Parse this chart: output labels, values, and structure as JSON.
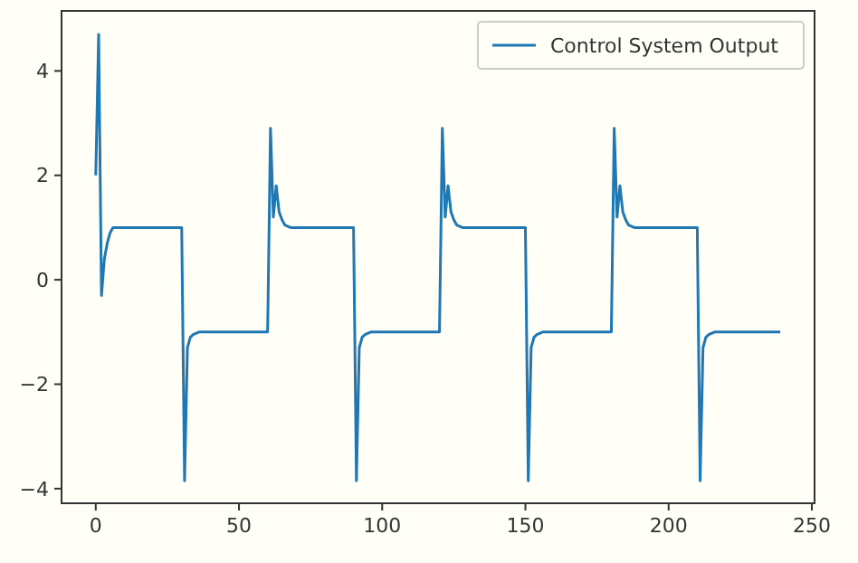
{
  "chart_data": {
    "type": "line",
    "x": [
      0,
      1,
      2,
      3,
      4,
      5,
      6,
      7,
      30,
      31,
      32,
      33,
      34,
      36,
      60,
      61,
      62,
      63,
      64,
      65,
      66,
      68,
      90,
      91,
      92,
      93,
      94,
      96,
      120,
      121,
      122,
      123,
      124,
      125,
      126,
      128,
      150,
      151,
      152,
      153,
      154,
      156,
      180,
      181,
      182,
      183,
      184,
      185,
      186,
      188,
      210,
      211,
      212,
      213,
      214,
      216,
      239
    ],
    "series": [
      {
        "name": "Control System Output",
        "color": "#1f77b4",
        "values": [
          2,
          4.7,
          -0.3,
          0.4,
          0.7,
          0.9,
          1.0,
          1.0,
          1.0,
          -3.85,
          -1.3,
          -1.1,
          -1.05,
          -1.0,
          -1.0,
          2.9,
          1.2,
          1.8,
          1.3,
          1.15,
          1.05,
          1.0,
          1.0,
          -3.85,
          -1.3,
          -1.1,
          -1.05,
          -1.0,
          -1.0,
          2.9,
          1.2,
          1.8,
          1.3,
          1.15,
          1.05,
          1.0,
          1.0,
          -3.85,
          -1.3,
          -1.1,
          -1.05,
          -1.0,
          -1.0,
          2.9,
          1.2,
          1.8,
          1.3,
          1.15,
          1.05,
          1.0,
          1.0,
          -3.85,
          -1.3,
          -1.1,
          -1.05,
          -1.0,
          -1.0
        ]
      }
    ],
    "xlim": [
      -11.95,
      250.95
    ],
    "xticks": [
      0,
      50,
      100,
      150,
      200,
      250
    ],
    "ylim": [
      -4.28,
      5.15
    ],
    "yticks": [
      -4,
      -2,
      0,
      2,
      4
    ],
    "legend": "top right",
    "grid": false,
    "marker": "none",
    "line_style": "solid"
  }
}
